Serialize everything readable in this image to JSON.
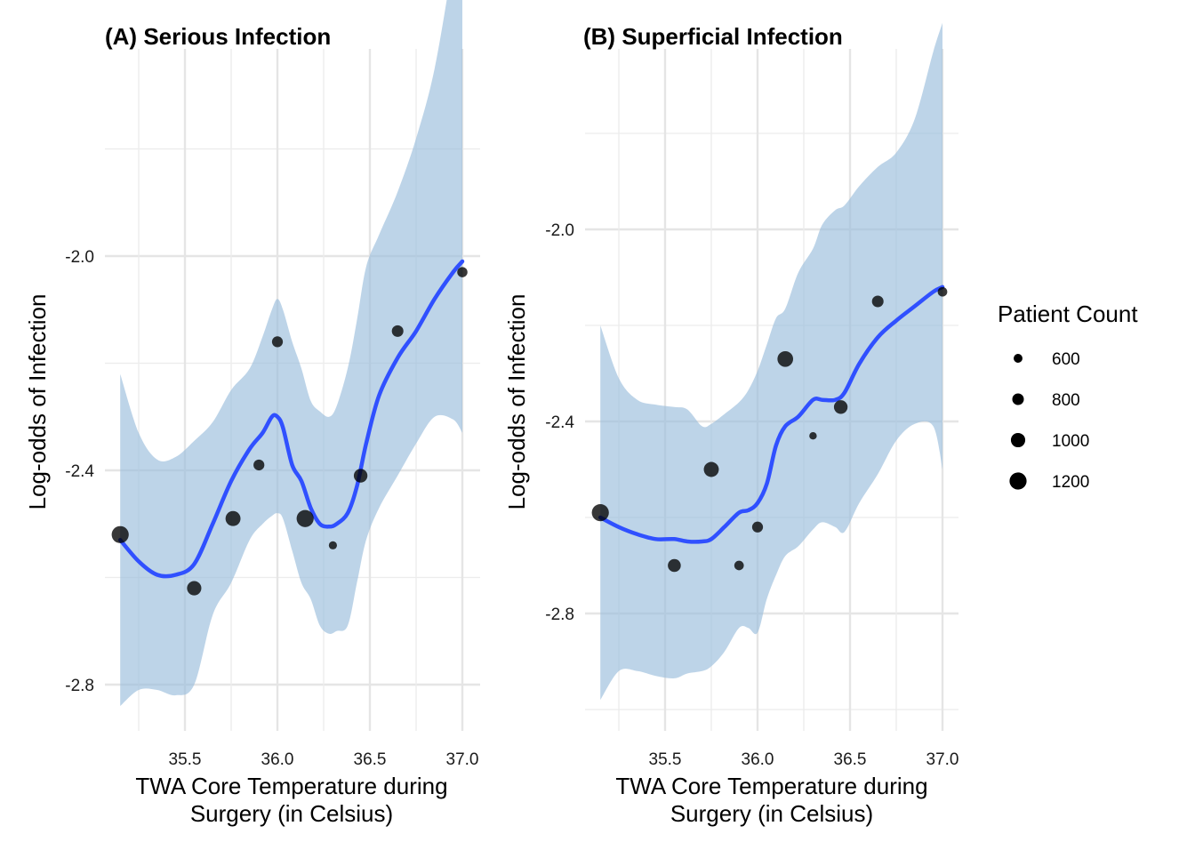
{
  "chart_data": [
    {
      "type": "scatter",
      "title": "(A) Serious Infection",
      "xlabel": [
        "TWA Core Temperature during",
        "Surgery (in Celsius)"
      ],
      "ylabel": "Log-odds of Infection",
      "xlim": [
        35.1,
        37.05
      ],
      "ylim": [
        -2.9,
        -1.62
      ],
      "x_ticks": [
        35.5,
        36.0,
        36.5,
        37.0
      ],
      "x_tick_labels": [
        "35.5",
        "36.0",
        "36.5",
        "37.0"
      ],
      "y_ticks": [
        -2.0,
        -2.4,
        -2.8
      ],
      "y_tick_labels": [
        "-2.0",
        "-2.4",
        "-2.8"
      ],
      "y_minor_ticks": [
        -1.8,
        -2.2,
        -2.6
      ],
      "x_minor_ticks": [
        35.25,
        35.75,
        36.25,
        36.75
      ],
      "grid": true,
      "points": [
        {
          "x": 35.15,
          "y": -2.52,
          "count": 1200
        },
        {
          "x": 35.55,
          "y": -2.62,
          "count": 1000
        },
        {
          "x": 35.76,
          "y": -2.49,
          "count": 1050
        },
        {
          "x": 35.9,
          "y": -2.39,
          "count": 750
        },
        {
          "x": 36.0,
          "y": -2.16,
          "count": 750
        },
        {
          "x": 36.15,
          "y": -2.49,
          "count": 1200
        },
        {
          "x": 36.3,
          "y": -2.54,
          "count": 550
        },
        {
          "x": 36.45,
          "y": -2.41,
          "count": 950
        },
        {
          "x": 36.65,
          "y": -2.14,
          "count": 800
        },
        {
          "x": 37.0,
          "y": -2.03,
          "count": 700
        }
      ],
      "smooth": {
        "x": [
          35.15,
          35.25,
          35.35,
          35.45,
          35.55,
          35.65,
          35.75,
          35.85,
          35.92,
          35.97,
          36.0,
          36.03,
          36.08,
          36.13,
          36.18,
          36.23,
          36.28,
          36.32,
          36.38,
          36.43,
          36.48,
          36.55,
          36.65,
          36.75,
          36.85,
          36.95,
          37.0
        ],
        "y": [
          -2.53,
          -2.57,
          -2.595,
          -2.595,
          -2.575,
          -2.5,
          -2.42,
          -2.36,
          -2.33,
          -2.3,
          -2.3,
          -2.32,
          -2.39,
          -2.42,
          -2.47,
          -2.5,
          -2.505,
          -2.5,
          -2.48,
          -2.43,
          -2.35,
          -2.26,
          -2.19,
          -2.14,
          -2.08,
          -2.03,
          -2.01
        ],
        "lower": [
          -2.84,
          -2.81,
          -2.81,
          -2.82,
          -2.8,
          -2.67,
          -2.61,
          -2.53,
          -2.5,
          -2.485,
          -2.48,
          -2.49,
          -2.55,
          -2.61,
          -2.64,
          -2.69,
          -2.705,
          -2.7,
          -2.69,
          -2.61,
          -2.53,
          -2.47,
          -2.41,
          -2.35,
          -2.3,
          -2.305,
          -2.33
        ],
        "upper": [
          -2.22,
          -2.33,
          -2.38,
          -2.375,
          -2.345,
          -2.31,
          -2.25,
          -2.21,
          -2.15,
          -2.1,
          -2.08,
          -2.1,
          -2.16,
          -2.21,
          -2.27,
          -2.29,
          -2.3,
          -2.28,
          -2.21,
          -2.12,
          -2.02,
          -1.96,
          -1.88,
          -1.78,
          -1.65,
          -1.45,
          -1.35
        ]
      }
    },
    {
      "type": "scatter",
      "title": "(B) Superficial Infection",
      "xlabel": [
        "TWA Core Temperature during",
        "Surgery (in Celsius)"
      ],
      "ylabel": "Log-odds of Infection",
      "xlim": [
        35.1,
        37.05
      ],
      "ylim": [
        -3.05,
        -1.62
      ],
      "x_ticks": [
        35.5,
        36.0,
        36.5,
        37.0
      ],
      "x_tick_labels": [
        "35.5",
        "36.0",
        "36.5",
        "37.0"
      ],
      "y_ticks": [
        -2.0,
        -2.4,
        -2.8
      ],
      "y_tick_labels": [
        "-2.0",
        "-2.4",
        "-2.8"
      ],
      "y_minor_ticks": [
        -1.8,
        -2.2,
        -2.6,
        -3.0
      ],
      "x_minor_ticks": [
        35.25,
        35.75,
        36.25,
        36.75
      ],
      "grid": true,
      "points": [
        {
          "x": 35.15,
          "y": -2.59,
          "count": 1200
        },
        {
          "x": 35.55,
          "y": -2.7,
          "count": 900
        },
        {
          "x": 35.75,
          "y": -2.5,
          "count": 1050
        },
        {
          "x": 35.9,
          "y": -2.7,
          "count": 650
        },
        {
          "x": 36.0,
          "y": -2.62,
          "count": 750
        },
        {
          "x": 36.15,
          "y": -2.27,
          "count": 1100
        },
        {
          "x": 36.3,
          "y": -2.43,
          "count": 500
        },
        {
          "x": 36.45,
          "y": -2.37,
          "count": 950
        },
        {
          "x": 36.65,
          "y": -2.15,
          "count": 800
        },
        {
          "x": 37.0,
          "y": -2.13,
          "count": 650
        }
      ],
      "smooth": {
        "x": [
          35.15,
          35.25,
          35.35,
          35.45,
          35.55,
          35.62,
          35.7,
          35.75,
          35.82,
          35.9,
          35.95,
          36.0,
          36.05,
          36.1,
          36.15,
          36.22,
          36.3,
          36.35,
          36.42,
          36.47,
          36.55,
          36.65,
          36.75,
          36.85,
          36.95,
          37.0
        ],
        "y": [
          -2.6,
          -2.62,
          -2.635,
          -2.645,
          -2.645,
          -2.65,
          -2.65,
          -2.645,
          -2.62,
          -2.59,
          -2.585,
          -2.57,
          -2.53,
          -2.45,
          -2.41,
          -2.39,
          -2.355,
          -2.355,
          -2.355,
          -2.34,
          -2.28,
          -2.225,
          -2.19,
          -2.16,
          -2.13,
          -2.12
        ],
        "lower": [
          -2.98,
          -2.92,
          -2.92,
          -2.93,
          -2.935,
          -2.925,
          -2.92,
          -2.91,
          -2.88,
          -2.83,
          -2.83,
          -2.84,
          -2.77,
          -2.72,
          -2.68,
          -2.66,
          -2.625,
          -2.61,
          -2.62,
          -2.63,
          -2.57,
          -2.51,
          -2.44,
          -2.405,
          -2.41,
          -2.5
        ],
        "upper": [
          -2.2,
          -2.31,
          -2.355,
          -2.365,
          -2.37,
          -2.375,
          -2.41,
          -2.405,
          -2.385,
          -2.36,
          -2.335,
          -2.295,
          -2.24,
          -2.185,
          -2.165,
          -2.09,
          -2.04,
          -1.99,
          -1.96,
          -1.95,
          -1.91,
          -1.87,
          -1.84,
          -1.77,
          -1.63,
          -1.57
        ]
      }
    }
  ],
  "legend": {
    "title": "Patient Count",
    "position": "right",
    "items": [
      {
        "label": "600",
        "value": 600
      },
      {
        "label": "800",
        "value": 800
      },
      {
        "label": "1000",
        "value": 1000
      },
      {
        "label": "1200",
        "value": 1200
      }
    ]
  },
  "colors": {
    "smooth_line": "#3050ff",
    "band": "#9abddb",
    "point": "#000000",
    "grid": "#e5e5e5"
  }
}
